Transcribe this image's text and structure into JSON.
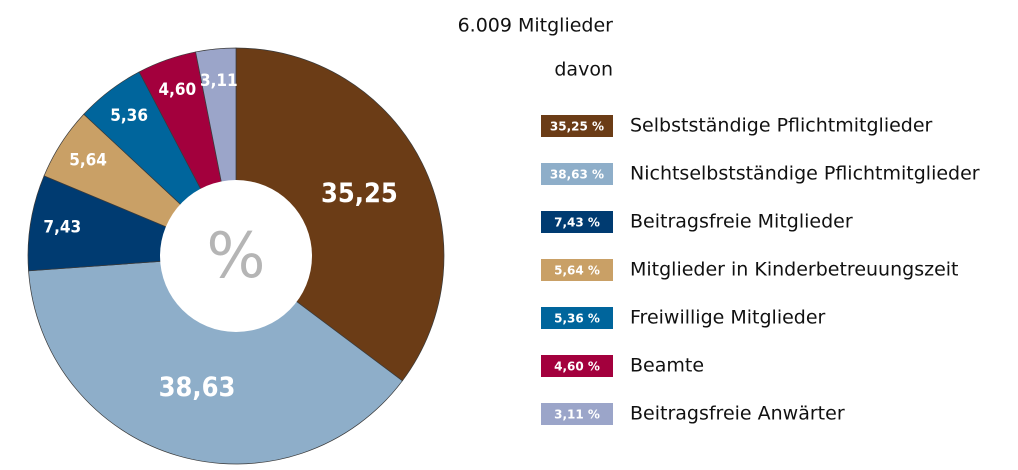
{
  "chart_data": {
    "type": "donut",
    "title": "6.009 Mitglieder",
    "subtitle": "davon",
    "center_label": "%",
    "categories": [
      "Selbstständige Pflichtmitglieder",
      "Nichtselbstständige Pflichtmitglieder",
      "Beitragsfreie Mitglieder",
      "Mitglieder in Kinderbetreuungszeit",
      "Freiwillige Mitglieder",
      "Beamte",
      "Beitragsfreie Anwärter"
    ],
    "values": [
      35.25,
      38.63,
      7.43,
      5.64,
      5.36,
      4.6,
      3.11
    ],
    "value_labels": [
      "35,25",
      "38,63",
      "7,43",
      "5,64",
      "5,36",
      "4,60",
      "3,11"
    ],
    "legend_value_labels": [
      "35,25 %",
      "38,63 %",
      "7,43 %",
      "5,64 %",
      "5,36 %",
      "4,60 %",
      "3,11 %"
    ],
    "colors": [
      "#6b3c16",
      "#8eaec9",
      "#003b71",
      "#c9a066",
      "#00659c",
      "#a3003d",
      "#9ba5c9"
    ],
    "legend": "right"
  }
}
